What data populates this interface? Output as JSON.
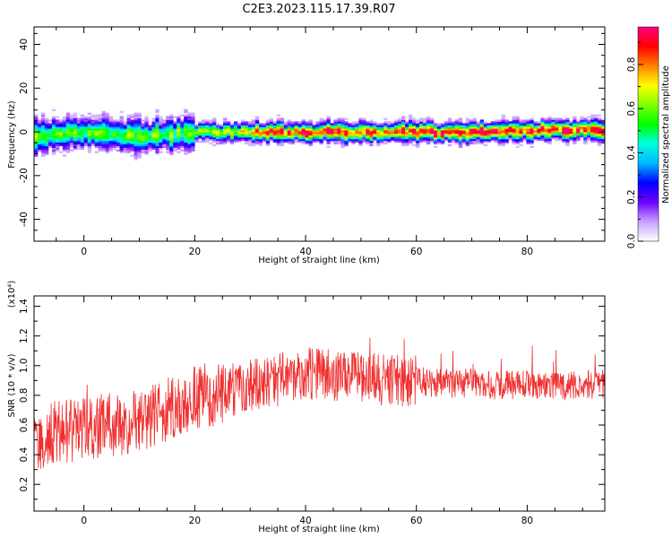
{
  "title": "C2E3.2023.115.17.39.R07",
  "chart_data": [
    {
      "type": "heatmap",
      "xlabel": "Height of straight line (km)",
      "ylabel": "Frequency (Hz)",
      "xlim": [
        -9,
        94
      ],
      "ylim": [
        -50,
        48
      ],
      "xticks": [
        0,
        20,
        40,
        60,
        80
      ],
      "yticks": [
        -40,
        -20,
        0,
        20,
        40
      ],
      "colorbar": {
        "label": "Normalized spectral amplitude",
        "range": [
          0.0,
          0.97
        ],
        "ticks": [
          0.0,
          0.2,
          0.4,
          0.6,
          0.8
        ],
        "colormap": [
          "#ffffff",
          "#c8a0ff",
          "#7000ff",
          "#0000ff",
          "#00b8ff",
          "#00ffe0",
          "#00ff00",
          "#80ff00",
          "#ffff00",
          "#ff8000",
          "#ff0000",
          "#ff0080"
        ]
      },
      "ridge": {
        "x": [
          -9,
          0,
          10,
          20,
          30,
          40,
          50,
          60,
          70,
          80,
          90,
          94
        ],
        "freq": [
          -2,
          0,
          -2,
          0,
          0,
          0,
          0,
          0,
          0,
          1,
          1,
          0
        ]
      }
    },
    {
      "type": "line",
      "xlabel": "Height of straight line (km)",
      "ylabel": "SNR (10 * v/v)",
      "yscale_label": "(x10⁴)",
      "xlim": [
        -9,
        94
      ],
      "ylim": [
        0.02,
        1.47
      ],
      "xticks": [
        0,
        20,
        40,
        60,
        80
      ],
      "yticks": [
        0.2,
        0.4,
        0.6,
        0.8,
        1.0,
        1.2,
        1.4
      ],
      "ytick_labels": [
        "0.2",
        "0.4",
        "0.6",
        "0.8",
        "1.0",
        "1.2",
        "1.4"
      ],
      "color": "#f03030",
      "series": [
        {
          "x": [
            -9,
            -5,
            0,
            5,
            10,
            15,
            20,
            25,
            30,
            35,
            40,
            45,
            50,
            55,
            60,
            65,
            70,
            75,
            80,
            85,
            90,
            94
          ],
          "values": [
            0.5,
            0.55,
            0.58,
            0.6,
            0.62,
            0.7,
            0.78,
            0.82,
            0.86,
            0.9,
            0.95,
            0.93,
            0.92,
            0.9,
            0.9,
            0.88,
            0.88,
            0.87,
            0.88,
            0.86,
            0.87,
            0.88
          ]
        }
      ]
    }
  ]
}
